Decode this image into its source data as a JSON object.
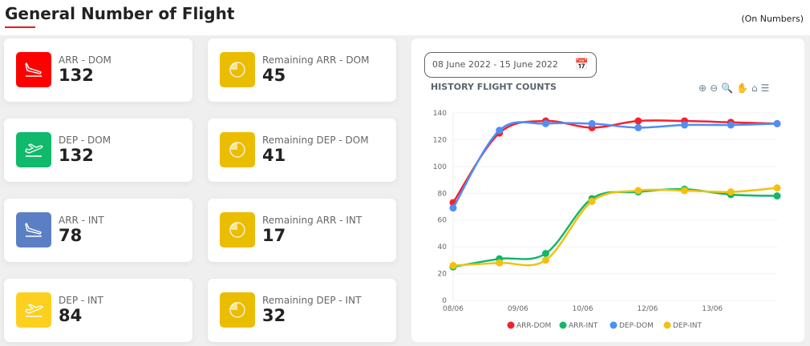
{
  "header": {
    "title": "General Number of Flight",
    "unit": "(On Numbers)"
  },
  "cards": [
    {
      "label": "ARR - DOM",
      "value": "132",
      "icon": "plane-landing-icon",
      "color": "#ff0000"
    },
    {
      "label": "Remaining ARR - DOM",
      "value": "45",
      "icon": "pie-icon",
      "color": "#ebbd00"
    },
    {
      "label": "DEP - DOM",
      "value": "132",
      "icon": "plane-takeoff-icon",
      "color": "#10b96b"
    },
    {
      "label": "Remaining DEP - DOM",
      "value": "41",
      "icon": "pie-icon",
      "color": "#ebbd00"
    },
    {
      "label": "ARR - INT",
      "value": "78",
      "icon": "plane-landing-icon",
      "color": "#5b7fc4"
    },
    {
      "label": "Remaining ARR - INT",
      "value": "17",
      "icon": "pie-icon",
      "color": "#ebbd00"
    },
    {
      "label": "DEP - INT",
      "value": "84",
      "icon": "plane-takeoff-icon",
      "color": "#fdd020"
    },
    {
      "label": "Remaining DEP - INT",
      "value": "32",
      "icon": "pie-icon",
      "color": "#ebbd00"
    }
  ],
  "date_range": "08 June 2022 - 15 June 2022",
  "chart_data": {
    "type": "line",
    "title": "HISTORY FLIGHT COUNTS",
    "ylim": [
      0,
      140
    ],
    "yticks": [
      0,
      20,
      40,
      60,
      80,
      100,
      120,
      140
    ],
    "xticks": [
      "08/06",
      "09/06",
      "10/06",
      "12/06",
      "13/06"
    ],
    "series": [
      {
        "name": "ARR-DOM",
        "color": "#f5222d",
        "values": [
          73,
          125,
          134,
          129,
          134,
          134,
          133,
          132
        ]
      },
      {
        "name": "ARR-INT",
        "color": "#12b76a",
        "values": [
          25,
          31,
          35,
          76,
          81,
          83,
          79,
          78
        ]
      },
      {
        "name": "DEP-DOM",
        "color": "#4e8ef7",
        "values": [
          69,
          127,
          132,
          132,
          129,
          131,
          131,
          132
        ]
      },
      {
        "name": "DEP-INT",
        "color": "#f2c10f",
        "values": [
          26,
          28,
          30,
          74,
          82,
          82,
          81,
          84
        ]
      }
    ]
  }
}
